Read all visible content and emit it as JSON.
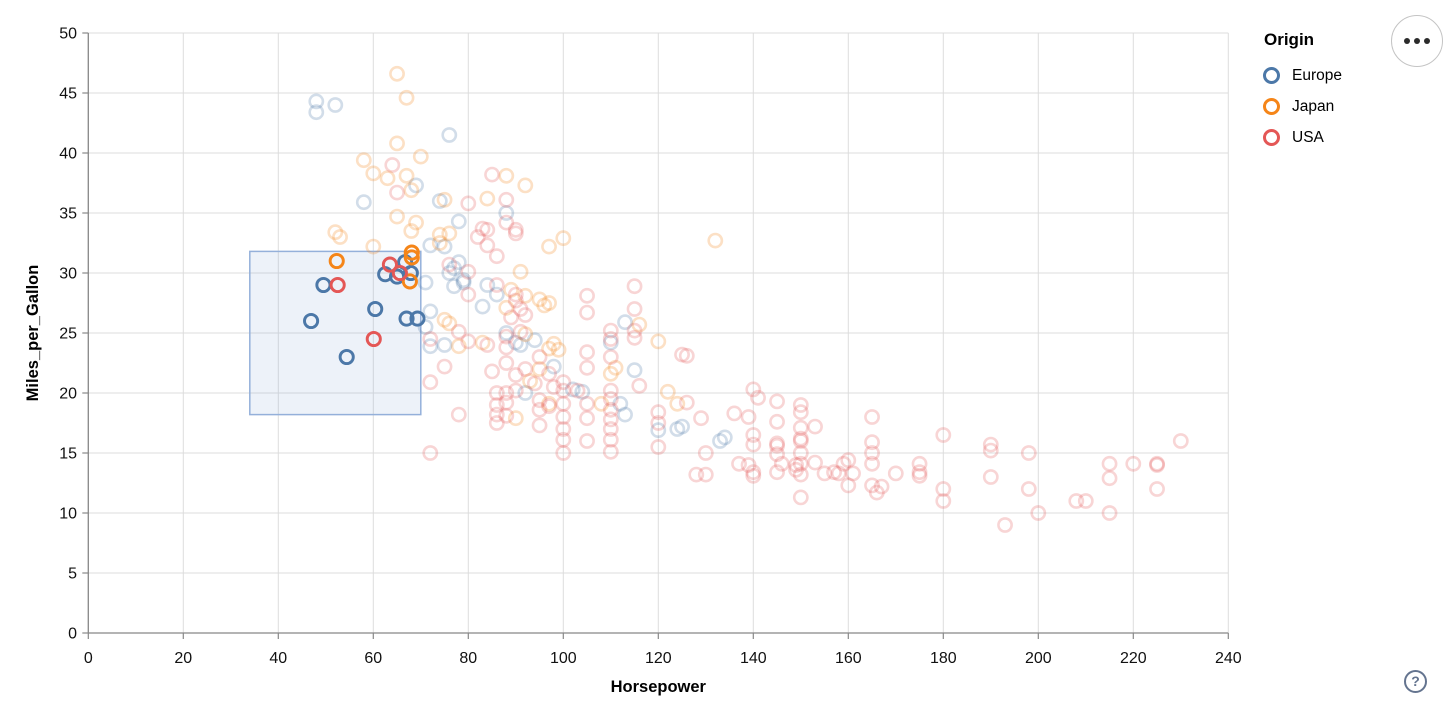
{
  "toolbar": {
    "menu_icon": "ellipsis",
    "help_label": "?"
  },
  "legend": {
    "title": "Origin",
    "items": [
      {
        "label": "Europe",
        "color": "#4c78a8"
      },
      {
        "label": "Japan",
        "color": "#f58518"
      },
      {
        "label": "USA",
        "color": "#e45756"
      }
    ]
  },
  "chart_data": {
    "type": "scatter",
    "xlabel": "Horsepower",
    "ylabel": "Miles_per_Gallon",
    "xlim": [
      0,
      240
    ],
    "ylim": [
      0,
      50
    ],
    "x_ticks": [
      0,
      20,
      40,
      60,
      80,
      100,
      120,
      140,
      160,
      180,
      200,
      220,
      240
    ],
    "y_ticks": [
      0,
      5,
      10,
      15,
      20,
      25,
      30,
      35,
      40,
      45,
      50
    ],
    "grid": true,
    "legend_position": "top-right",
    "unselected_opacity": 0.25,
    "brush": {
      "Horsepower": [
        34,
        70
      ],
      "Miles_per_Gallon": [
        18.2,
        31.8
      ]
    },
    "series": [
      {
        "name": "Europe",
        "color": "#4c78a8",
        "selected": [
          [
            49.5,
            29
          ],
          [
            46.9,
            26
          ],
          [
            60.4,
            27
          ],
          [
            67,
            26.2
          ],
          [
            69.3,
            26.2
          ],
          [
            54.4,
            23
          ],
          [
            66.7,
            30.9
          ],
          [
            67.9,
            30
          ],
          [
            62.5,
            29.9
          ],
          [
            65,
            29.7
          ]
        ],
        "unselected": [
          [
            48,
            44.3
          ],
          [
            52,
            44
          ],
          [
            48,
            43.4
          ],
          [
            76,
            41.5
          ],
          [
            69,
            37.3
          ],
          [
            58,
            35.9
          ],
          [
            74,
            36
          ],
          [
            78,
            34.3
          ],
          [
            88,
            35
          ],
          [
            72,
            32.3
          ],
          [
            75,
            32.2
          ],
          [
            78,
            30.9
          ],
          [
            79,
            29.4
          ],
          [
            76,
            30
          ],
          [
            71,
            29.2
          ],
          [
            77,
            30.4
          ],
          [
            79,
            29.2
          ],
          [
            77,
            28.9
          ],
          [
            86,
            28.2
          ],
          [
            84,
            29
          ],
          [
            83,
            27.2
          ],
          [
            72,
            26.8
          ],
          [
            71,
            25.5
          ],
          [
            72,
            23.9
          ],
          [
            88,
            25
          ],
          [
            75,
            24
          ],
          [
            90,
            24.2
          ],
          [
            91,
            24
          ],
          [
            94,
            24.4
          ],
          [
            98,
            22.2
          ],
          [
            102,
            20.3
          ],
          [
            104,
            20.1
          ],
          [
            110,
            24.2
          ],
          [
            113,
            25.9
          ],
          [
            115,
            21.9
          ],
          [
            92,
            20
          ],
          [
            112,
            19.1
          ],
          [
            113,
            18.2
          ],
          [
            120,
            16.9
          ],
          [
            124,
            17
          ],
          [
            125,
            17.2
          ],
          [
            133,
            16
          ],
          [
            134,
            16.3
          ]
        ]
      },
      {
        "name": "Japan",
        "color": "#f58518",
        "selected": [
          [
            52.3,
            31
          ],
          [
            68.1,
            31.7
          ],
          [
            68.1,
            31.3
          ],
          [
            67.7,
            29.3
          ]
        ],
        "unselected": [
          [
            65,
            46.6
          ],
          [
            67,
            44.6
          ],
          [
            65,
            40.8
          ],
          [
            58,
            39.4
          ],
          [
            70,
            39.7
          ],
          [
            60,
            38.3
          ],
          [
            67,
            38.1
          ],
          [
            63,
            37.9
          ],
          [
            68,
            36.9
          ],
          [
            84,
            36.2
          ],
          [
            88,
            38.1
          ],
          [
            92,
            37.3
          ],
          [
            75,
            36.1
          ],
          [
            65,
            34.7
          ],
          [
            69,
            34.2
          ],
          [
            68,
            33.5
          ],
          [
            74,
            33.2
          ],
          [
            76,
            33.3
          ],
          [
            74,
            32.5
          ],
          [
            60,
            32.2
          ],
          [
            52,
            33.4
          ],
          [
            53,
            33
          ],
          [
            100,
            32.9
          ],
          [
            97,
            32.2
          ],
          [
            132,
            32.7
          ],
          [
            91,
            30.1
          ],
          [
            89,
            28.6
          ],
          [
            92,
            28.1
          ],
          [
            95,
            27.8
          ],
          [
            97,
            27.5
          ],
          [
            88,
            27.1
          ],
          [
            96,
            27.3
          ],
          [
            75,
            26.1
          ],
          [
            76,
            25.8
          ],
          [
            78,
            23.9
          ],
          [
            83,
            24.2
          ],
          [
            92,
            24.9
          ],
          [
            98,
            24.1
          ],
          [
            97,
            23.7
          ],
          [
            99,
            23.6
          ],
          [
            116,
            25.7
          ],
          [
            111,
            22.1
          ],
          [
            110,
            21.6
          ],
          [
            120,
            24.3
          ],
          [
            93,
            21
          ],
          [
            95,
            22
          ],
          [
            90,
            17.9
          ],
          [
            97,
            19.1
          ],
          [
            108,
            19.1
          ],
          [
            122,
            20.1
          ],
          [
            124,
            19.1
          ]
        ]
      },
      {
        "name": "USA",
        "color": "#e45756",
        "selected": [
          [
            52.5,
            29
          ],
          [
            63.5,
            30.7
          ],
          [
            65.6,
            30
          ],
          [
            60.1,
            24.5
          ]
        ],
        "unselected": [
          [
            64,
            39
          ],
          [
            65,
            36.7
          ],
          [
            85,
            38.2
          ],
          [
            80,
            35.8
          ],
          [
            88,
            36.1
          ],
          [
            84,
            33.6
          ],
          [
            90,
            33.3
          ],
          [
            83,
            33.7
          ],
          [
            90,
            33.6
          ],
          [
            88,
            34.2
          ],
          [
            82,
            33
          ],
          [
            84,
            32.3
          ],
          [
            86,
            31.4
          ],
          [
            76,
            30.7
          ],
          [
            80,
            30.1
          ],
          [
            80,
            28.2
          ],
          [
            90,
            28.2
          ],
          [
            90,
            27.7
          ],
          [
            91,
            27
          ],
          [
            105,
            28.1
          ],
          [
            105,
            26.7
          ],
          [
            115,
            28.9
          ],
          [
            115,
            27
          ],
          [
            86,
            29
          ],
          [
            89,
            26.3
          ],
          [
            92,
            26.5
          ],
          [
            110,
            25.2
          ],
          [
            115,
            25.2
          ],
          [
            115,
            24.6
          ],
          [
            110,
            24.5
          ],
          [
            105,
            23.4
          ],
          [
            110,
            23
          ],
          [
            105,
            22.1
          ],
          [
            125,
            23.2
          ],
          [
            126,
            23.1
          ],
          [
            72,
            24.5
          ],
          [
            75,
            22.2
          ],
          [
            78,
            25.1
          ],
          [
            80,
            24.3
          ],
          [
            84,
            24
          ],
          [
            88,
            23.8
          ],
          [
            88,
            22.5
          ],
          [
            85,
            21.8
          ],
          [
            92,
            22
          ],
          [
            95,
            23
          ],
          [
            90,
            21.5
          ],
          [
            94,
            20.8
          ],
          [
            97,
            21.6
          ],
          [
            98,
            20.5
          ],
          [
            100,
            20.9
          ],
          [
            100,
            20.2
          ],
          [
            91,
            25.1
          ],
          [
            88,
            24.7
          ],
          [
            72,
            20.9
          ],
          [
            72,
            15
          ],
          [
            78,
            18.2
          ],
          [
            86,
            20
          ],
          [
            86,
            19
          ],
          [
            86,
            18.2
          ],
          [
            86,
            17.5
          ],
          [
            88,
            20
          ],
          [
            88,
            19.2
          ],
          [
            88,
            18.1
          ],
          [
            90,
            20.2
          ],
          [
            95,
            19.4
          ],
          [
            95,
            18.6
          ],
          [
            95,
            17.3
          ],
          [
            97,
            18.9
          ],
          [
            100,
            19.1
          ],
          [
            100,
            18
          ],
          [
            100,
            17
          ],
          [
            100,
            16.1
          ],
          [
            100,
            15
          ],
          [
            103,
            20.2
          ],
          [
            105,
            19.1
          ],
          [
            105,
            17.9
          ],
          [
            105,
            16
          ],
          [
            110,
            20.2
          ],
          [
            110,
            19.5
          ],
          [
            110,
            18.6
          ],
          [
            110,
            17.8
          ],
          [
            110,
            17
          ],
          [
            110,
            16.1
          ],
          [
            110,
            15.1
          ],
          [
            116,
            20.6
          ],
          [
            120,
            18.4
          ],
          [
            120,
            17.5
          ],
          [
            120,
            15.5
          ],
          [
            126,
            19.2
          ],
          [
            129,
            17.9
          ],
          [
            130,
            15
          ],
          [
            128,
            13.2
          ],
          [
            130,
            13.2
          ],
          [
            136,
            18.3
          ],
          [
            139,
            18
          ],
          [
            137,
            14.1
          ],
          [
            139,
            14
          ],
          [
            140,
            20.3
          ],
          [
            141,
            19.6
          ],
          [
            140,
            16.5
          ],
          [
            140,
            15.7
          ],
          [
            140,
            13.4
          ],
          [
            140,
            13.1
          ],
          [
            145,
            19.3
          ],
          [
            145,
            17.6
          ],
          [
            145,
            15.8
          ],
          [
            145,
            15.6
          ],
          [
            145,
            14.9
          ],
          [
            145,
            13.4
          ],
          [
            146,
            14.1
          ],
          [
            149,
            14
          ],
          [
            149,
            13.6
          ],
          [
            150,
            19
          ],
          [
            150,
            18.4
          ],
          [
            150,
            17.1
          ],
          [
            150,
            16.2
          ],
          [
            150,
            16
          ],
          [
            150,
            15
          ],
          [
            150,
            14.1
          ],
          [
            150,
            13.2
          ],
          [
            150,
            11.3
          ],
          [
            153,
            17.2
          ],
          [
            153,
            14.2
          ],
          [
            155,
            13.3
          ],
          [
            157,
            13.4
          ],
          [
            158,
            13.3
          ],
          [
            159,
            14.1
          ],
          [
            160,
            14.4
          ],
          [
            160,
            12.3
          ],
          [
            161,
            13.3
          ],
          [
            165,
            18
          ],
          [
            165,
            15.9
          ],
          [
            165,
            15
          ],
          [
            165,
            14.1
          ],
          [
            165,
            12.3
          ],
          [
            166,
            11.7
          ],
          [
            167,
            12.2
          ],
          [
            170,
            13.3
          ],
          [
            175,
            14.1
          ],
          [
            175,
            13.4
          ],
          [
            175,
            13.1
          ],
          [
            180,
            16.5
          ],
          [
            180,
            12
          ],
          [
            180,
            11
          ],
          [
            190,
            15.7
          ],
          [
            190,
            15.2
          ],
          [
            198,
            15
          ],
          [
            190,
            13
          ],
          [
            198,
            12
          ],
          [
            200,
            10
          ],
          [
            193,
            9
          ],
          [
            208,
            11
          ],
          [
            210,
            11
          ],
          [
            215,
            14.1
          ],
          [
            215,
            12.9
          ],
          [
            215,
            10
          ],
          [
            220,
            14.1
          ],
          [
            225,
            14.1
          ],
          [
            225,
            14
          ],
          [
            225,
            12
          ],
          [
            230,
            16
          ]
        ]
      }
    ]
  }
}
